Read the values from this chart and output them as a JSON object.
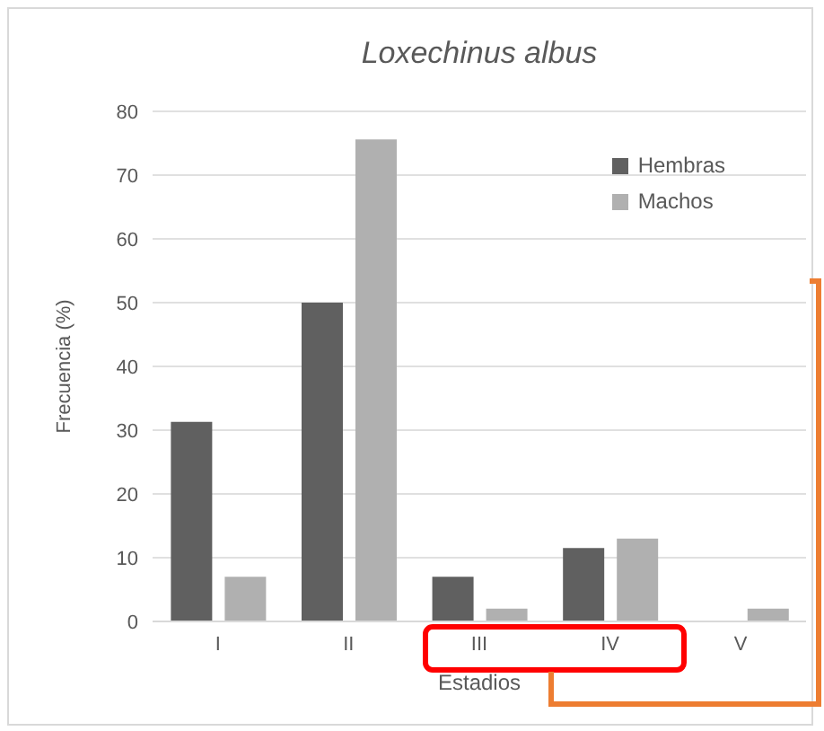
{
  "chart_data": {
    "type": "bar",
    "title": "Loxechinus albus",
    "xlabel": "Estadios",
    "ylabel": "Frecuencia (%)",
    "categories": [
      "I",
      "II",
      "III",
      "IV",
      "V"
    ],
    "series": [
      {
        "name": "Hembras",
        "color": "#606060",
        "values": [
          31.3,
          50,
          7,
          11.5,
          0
        ]
      },
      {
        "name": "Machos",
        "color": "#b0b0b0",
        "values": [
          7,
          75.6,
          2,
          13,
          2
        ]
      }
    ],
    "ylim": [
      0,
      80
    ],
    "yticks": [
      0,
      10,
      20,
      30,
      40,
      50,
      60,
      70,
      80
    ],
    "grid": "y",
    "legend": "top right"
  }
}
